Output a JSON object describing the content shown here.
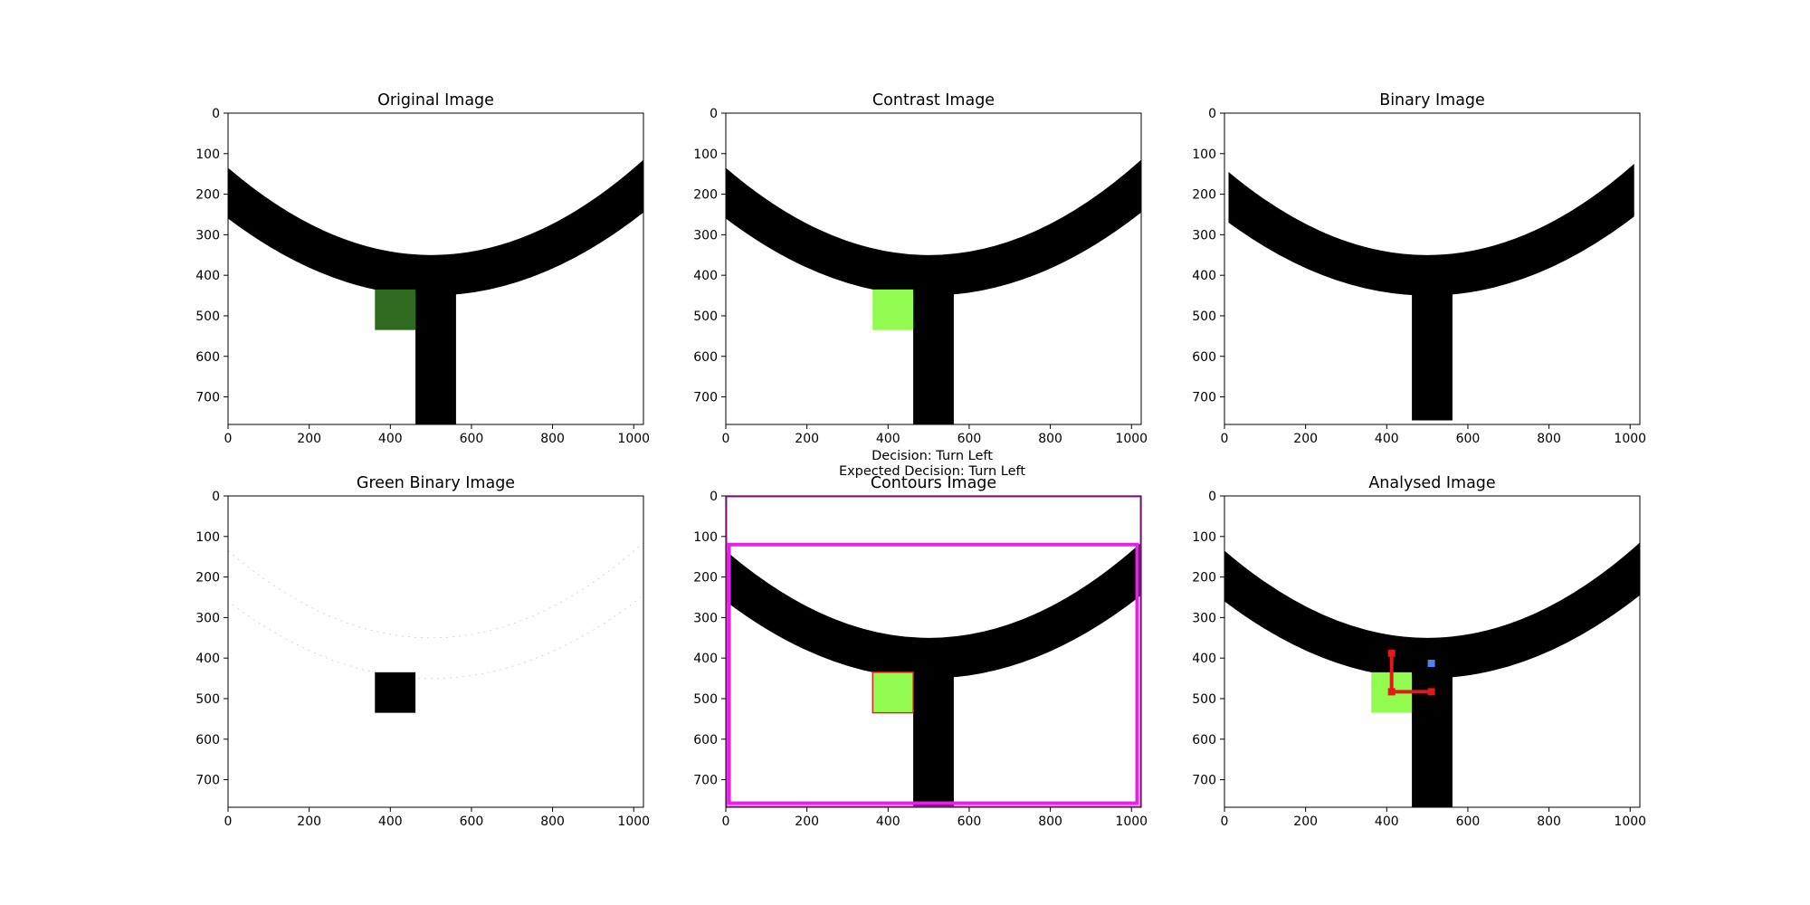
{
  "figure": {
    "decision": "Decision: Turn Left",
    "expected_decision": "Expected Decision: Turn Left"
  },
  "axes": {
    "x_ticks": [
      "0",
      "200",
      "400",
      "600",
      "800",
      "1000"
    ],
    "y_ticks": [
      "0",
      "100",
      "200",
      "300",
      "400",
      "500",
      "600",
      "700"
    ],
    "x_range": [
      0,
      1024
    ],
    "y_range": [
      768,
      0
    ]
  },
  "colors": {
    "track": "#000000",
    "green_original": "#2e6b1f",
    "green_contrast": "#92fb4f",
    "contour_magenta": "#e722e7",
    "contour_red": "#e61a1a",
    "analysis_red": "#e11919",
    "analysis_blue": "#4c84ec"
  },
  "panels": [
    {
      "id": "original",
      "title": "Original Image"
    },
    {
      "id": "contrast",
      "title": "Contrast Image"
    },
    {
      "id": "binary",
      "title": "Binary Image"
    },
    {
      "id": "green-binary",
      "title": "Green Binary Image"
    },
    {
      "id": "contours",
      "title": "Contours Image"
    },
    {
      "id": "analysed",
      "title": "Analysed Image"
    }
  ]
}
